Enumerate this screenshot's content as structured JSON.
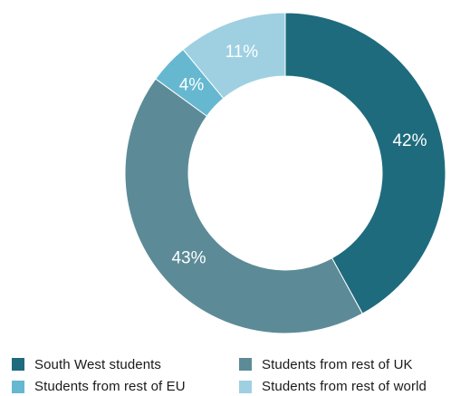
{
  "chart_data": {
    "type": "pie",
    "variant": "donut",
    "start_angle_deg": 0,
    "direction": "clockwise",
    "slices": [
      {
        "name": "South West students",
        "value": 42,
        "label": "42%",
        "color": "#1e6b7d"
      },
      {
        "name": "Students from rest of UK",
        "value": 43,
        "label": "43%",
        "color": "#5c8b97"
      },
      {
        "name": "Students from rest of EU",
        "value": 4,
        "label": "4%",
        "color": "#66b8d1"
      },
      {
        "name": "Students from rest of world",
        "value": 11,
        "label": "11%",
        "color": "#9ed0e2"
      }
    ],
    "legend_position": "bottom"
  },
  "legend": [
    {
      "label": "South West students",
      "color": "#1e6b7d"
    },
    {
      "label": "Students from rest of UK",
      "color": "#5c8b97"
    },
    {
      "label": "Students from rest of EU",
      "color": "#66b8d1"
    },
    {
      "label": "Students from rest of world",
      "color": "#9ed0e2"
    }
  ]
}
